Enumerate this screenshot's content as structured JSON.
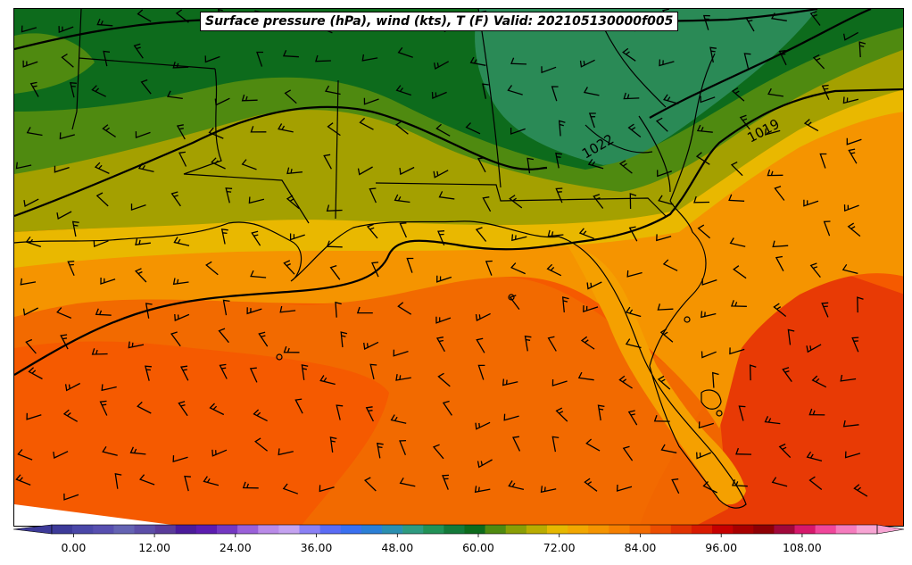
{
  "title": "Surface pressure (hPa), wind (kts), T (F) Valid: 202105130000f005",
  "isobars": [
    {
      "label": "1022"
    },
    {
      "label": "1019"
    }
  ],
  "colorbar": {
    "min": -6,
    "max": 120,
    "step": 3,
    "ticks": [
      "0.00",
      "12.00",
      "24.00",
      "36.00",
      "48.00",
      "60.00",
      "72.00",
      "84.00",
      "96.00",
      "108.00"
    ],
    "colors": [
      "#3d3a99",
      "#4a47a8",
      "#574fb0",
      "#6463b3",
      "#5c4ea8",
      "#5a3b9a",
      "#4b1b9a",
      "#5c1cb0",
      "#7438c2",
      "#9a60d9",
      "#b98ae8",
      "#c4a2f0",
      "#8a80f5",
      "#5b6cf5",
      "#3a70f0",
      "#2b7fd6",
      "#2b8fb0",
      "#2e9b80",
      "#229257",
      "#147a3a",
      "#0d6b1c",
      "#4f8a10",
      "#8a9e05",
      "#b9ac00",
      "#e6b800",
      "#f2a700",
      "#f59400",
      "#f57f00",
      "#f26a00",
      "#ec4e00",
      "#e03200",
      "#d81a00",
      "#c60000",
      "#a80000",
      "#8e0005",
      "#a0083a",
      "#d6186b",
      "#f0469a",
      "#f57bbd",
      "#f7a4d3"
    ]
  },
  "region_colors": {
    "ocean_warm": "#f55a00",
    "ocean_hot": "#e83a05",
    "coast_orange": "#f59400",
    "coast_yellow": "#e9b800",
    "land_olive": "#a4a000",
    "land_green_olive": "#4f8a10",
    "land_green": "#0d6b1c",
    "land_teal": "#2a8a56"
  }
}
